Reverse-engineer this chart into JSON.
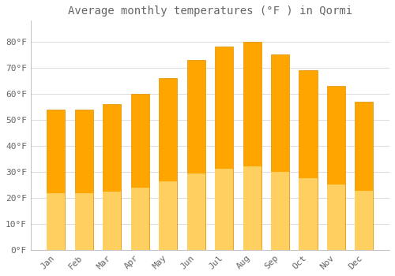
{
  "title": "Average monthly temperatures (°F ) in Qormi",
  "months": [
    "Jan",
    "Feb",
    "Mar",
    "Apr",
    "May",
    "Jun",
    "Jul",
    "Aug",
    "Sep",
    "Oct",
    "Nov",
    "Dec"
  ],
  "values": [
    54,
    54,
    56,
    60,
    66,
    73,
    78,
    80,
    75,
    69,
    63,
    57
  ],
  "bar_color_top": "#FFA500",
  "bar_color_bottom": "#FFD060",
  "bar_edge_color": "#E09000",
  "background_color": "#FFFFFF",
  "grid_color": "#DDDDDD",
  "text_color": "#666666",
  "ylim": [
    0,
    88
  ],
  "yticks": [
    0,
    10,
    20,
    30,
    40,
    50,
    60,
    70,
    80
  ],
  "ytick_labels": [
    "0°F",
    "10°F",
    "20°F",
    "30°F",
    "40°F",
    "50°F",
    "60°F",
    "70°F",
    "80°F"
  ],
  "title_fontsize": 10,
  "tick_fontsize": 8,
  "font_family": "monospace",
  "bar_width": 0.65
}
